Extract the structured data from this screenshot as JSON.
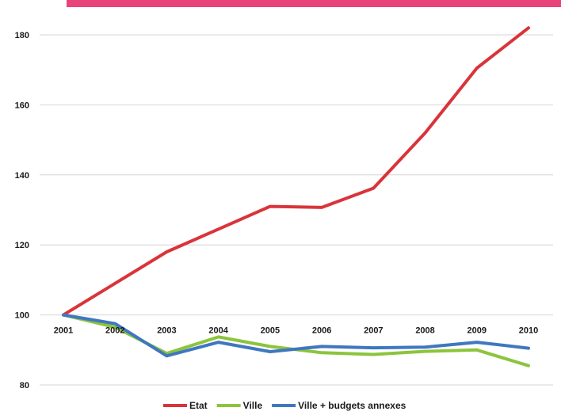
{
  "header_bar_color": "#e8437a",
  "chart_data": {
    "type": "line",
    "x": [
      "2001",
      "2002",
      "2003",
      "2004",
      "2005",
      "2006",
      "2007",
      "2008",
      "2009",
      "2010"
    ],
    "series": [
      {
        "name": "Etat",
        "color": "#d9343a",
        "values": [
          100,
          109,
          118,
          124.5,
          131,
          130.7,
          136.2,
          152,
          170.5,
          182
        ]
      },
      {
        "name": "Ville",
        "color": "#8cc43c",
        "values": [
          100,
          96.5,
          89,
          93.7,
          91,
          89.2,
          88.7,
          89.6,
          90,
          85.5
        ]
      },
      {
        "name": "Ville + budgets annexes",
        "color": "#3f77c0",
        "values": [
          100,
          97.5,
          88.3,
          92.2,
          89.5,
          91,
          90.6,
          90.8,
          92.2,
          90.5
        ]
      }
    ],
    "yticks": [
      80,
      100,
      120,
      140,
      160,
      180
    ],
    "ylim": [
      80,
      187
    ],
    "grid": true,
    "legend_position": "bottom-center"
  }
}
